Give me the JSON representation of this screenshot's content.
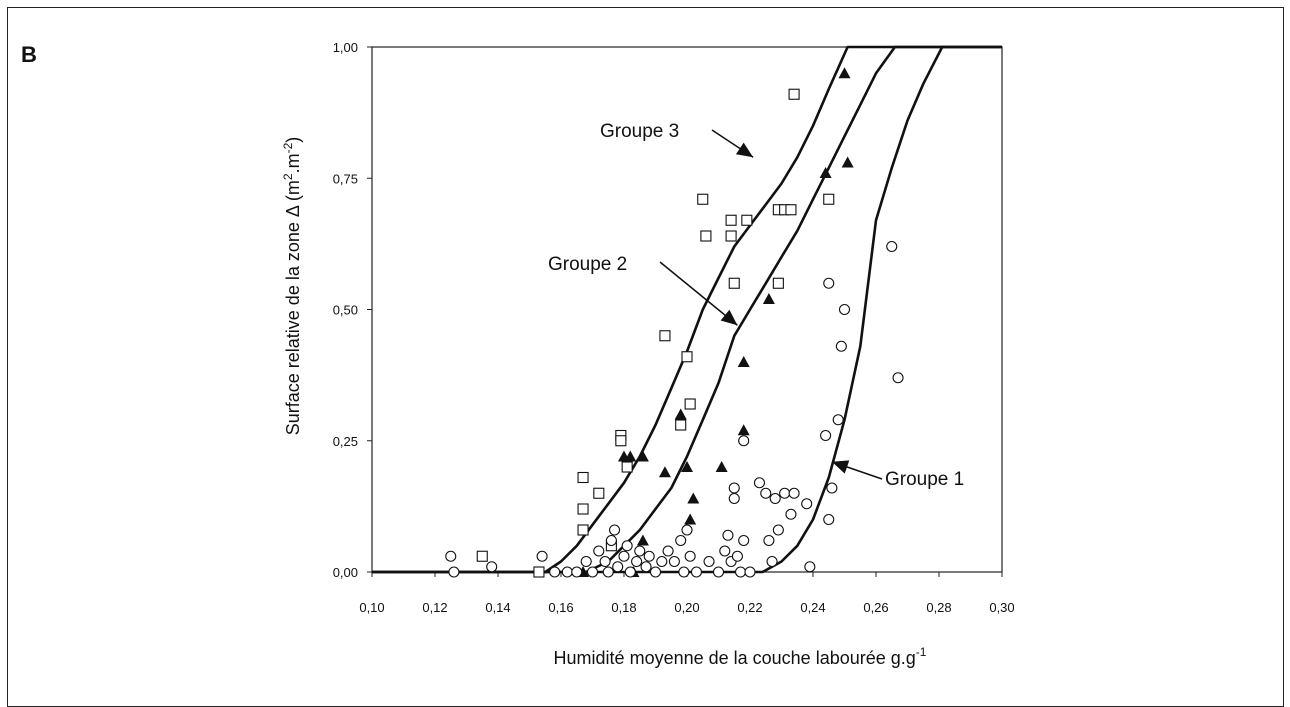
{
  "panel_label": "B",
  "colors": {
    "line": "#111111",
    "axis": "#222222"
  },
  "chart_data": {
    "type": "scatter",
    "xlabel": "Humidité moyenne de la couche labourée g.g",
    "xlabel_sup": "-1",
    "ylabel": "Surface relative de la zone Δ (m",
    "ylabel_sup1": "2",
    "ylabel_mid": ".m",
    "ylabel_sup2": "-2",
    "ylabel_end": ")",
    "xlim": [
      0.1,
      0.3
    ],
    "ylim": [
      0.0,
      1.0
    ],
    "x_ticks": [
      0.1,
      0.12,
      0.14,
      0.16,
      0.18,
      0.2,
      0.22,
      0.24,
      0.26,
      0.28,
      0.3
    ],
    "x_tick_labels": [
      "0,10",
      "0,12",
      "0,14",
      "0,16",
      "0,18",
      "0,20",
      "0,22",
      "0,24",
      "0,26",
      "0,28",
      "0,30"
    ],
    "y_ticks": [
      0.0,
      0.25,
      0.5,
      0.75,
      1.0
    ],
    "y_tick_labels": [
      "0,00",
      "0,25",
      "0,50",
      "0,75",
      "1,00"
    ],
    "grid": false,
    "curves": [
      {
        "name": "Groupe 3",
        "points": [
          [
            0.1,
            0
          ],
          [
            0.155,
            0
          ],
          [
            0.16,
            0.02
          ],
          [
            0.165,
            0.05
          ],
          [
            0.17,
            0.09
          ],
          [
            0.175,
            0.13
          ],
          [
            0.18,
            0.17
          ],
          [
            0.185,
            0.22
          ],
          [
            0.19,
            0.28
          ],
          [
            0.195,
            0.35
          ],
          [
            0.2,
            0.42
          ],
          [
            0.205,
            0.5
          ],
          [
            0.21,
            0.56
          ],
          [
            0.215,
            0.62
          ],
          [
            0.22,
            0.66
          ],
          [
            0.225,
            0.7
          ],
          [
            0.23,
            0.74
          ],
          [
            0.235,
            0.79
          ],
          [
            0.24,
            0.85
          ],
          [
            0.245,
            0.92
          ],
          [
            0.251,
            1.0
          ],
          [
            0.3,
            1.0
          ]
        ]
      },
      {
        "name": "Groupe 2",
        "points": [
          [
            0.1,
            0
          ],
          [
            0.168,
            0
          ],
          [
            0.175,
            0.02
          ],
          [
            0.18,
            0.05
          ],
          [
            0.185,
            0.08
          ],
          [
            0.19,
            0.12
          ],
          [
            0.195,
            0.16
          ],
          [
            0.2,
            0.22
          ],
          [
            0.205,
            0.29
          ],
          [
            0.21,
            0.36
          ],
          [
            0.215,
            0.45
          ],
          [
            0.22,
            0.5
          ],
          [
            0.225,
            0.55
          ],
          [
            0.23,
            0.6
          ],
          [
            0.235,
            0.65
          ],
          [
            0.24,
            0.71
          ],
          [
            0.245,
            0.77
          ],
          [
            0.25,
            0.83
          ],
          [
            0.255,
            0.89
          ],
          [
            0.26,
            0.95
          ],
          [
            0.266,
            1.0
          ],
          [
            0.3,
            1.0
          ]
        ]
      },
      {
        "name": "Groupe 1",
        "points": [
          [
            0.1,
            0
          ],
          [
            0.224,
            0
          ],
          [
            0.23,
            0.02
          ],
          [
            0.235,
            0.05
          ],
          [
            0.24,
            0.1
          ],
          [
            0.245,
            0.18
          ],
          [
            0.25,
            0.29
          ],
          [
            0.255,
            0.43
          ],
          [
            0.26,
            0.67
          ],
          [
            0.265,
            0.77
          ],
          [
            0.27,
            0.86
          ],
          [
            0.275,
            0.93
          ],
          [
            0.281,
            1.0
          ],
          [
            0.3,
            1.0
          ]
        ]
      }
    ],
    "series": [
      {
        "marker": "square",
        "points": [
          [
            0.135,
            0.03
          ],
          [
            0.153,
            0.0
          ],
          [
            0.167,
            0.18
          ],
          [
            0.167,
            0.12
          ],
          [
            0.167,
            0.08
          ],
          [
            0.172,
            0.15
          ],
          [
            0.176,
            0.05
          ],
          [
            0.179,
            0.26
          ],
          [
            0.179,
            0.25
          ],
          [
            0.181,
            0.2
          ],
          [
            0.193,
            0.45
          ],
          [
            0.198,
            0.28
          ],
          [
            0.2,
            0.41
          ],
          [
            0.201,
            0.32
          ],
          [
            0.205,
            0.71
          ],
          [
            0.206,
            0.64
          ],
          [
            0.214,
            0.67
          ],
          [
            0.214,
            0.64
          ],
          [
            0.215,
            0.55
          ],
          [
            0.219,
            0.67
          ],
          [
            0.229,
            0.69
          ],
          [
            0.231,
            0.69
          ],
          [
            0.233,
            0.69
          ],
          [
            0.234,
            0.91
          ],
          [
            0.229,
            0.55
          ],
          [
            0.245,
            0.71
          ]
        ]
      },
      {
        "marker": "triangle",
        "points": [
          [
            0.167,
            0.0
          ],
          [
            0.18,
            0.22
          ],
          [
            0.182,
            0.22
          ],
          [
            0.183,
            0.0
          ],
          [
            0.186,
            0.22
          ],
          [
            0.186,
            0.06
          ],
          [
            0.193,
            0.19
          ],
          [
            0.198,
            0.3
          ],
          [
            0.2,
            0.2
          ],
          [
            0.201,
            0.1
          ],
          [
            0.202,
            0.14
          ],
          [
            0.211,
            0.2
          ],
          [
            0.218,
            0.4
          ],
          [
            0.218,
            0.27
          ],
          [
            0.226,
            0.52
          ],
          [
            0.244,
            0.76
          ],
          [
            0.25,
            0.95
          ],
          [
            0.251,
            0.78
          ]
        ]
      },
      {
        "marker": "circle",
        "points": [
          [
            0.125,
            0.03
          ],
          [
            0.126,
            0.0
          ],
          [
            0.138,
            0.01
          ],
          [
            0.154,
            0.03
          ],
          [
            0.158,
            0.0
          ],
          [
            0.162,
            0.0
          ],
          [
            0.165,
            0.0
          ],
          [
            0.168,
            0.02
          ],
          [
            0.17,
            0.0
          ],
          [
            0.172,
            0.04
          ],
          [
            0.174,
            0.02
          ],
          [
            0.175,
            0.0
          ],
          [
            0.176,
            0.06
          ],
          [
            0.177,
            0.08
          ],
          [
            0.178,
            0.01
          ],
          [
            0.18,
            0.03
          ],
          [
            0.181,
            0.05
          ],
          [
            0.182,
            0.0
          ],
          [
            0.184,
            0.02
          ],
          [
            0.185,
            0.04
          ],
          [
            0.187,
            0.01
          ],
          [
            0.188,
            0.03
          ],
          [
            0.19,
            0.0
          ],
          [
            0.192,
            0.02
          ],
          [
            0.194,
            0.04
          ],
          [
            0.196,
            0.02
          ],
          [
            0.198,
            0.06
          ],
          [
            0.199,
            0.0
          ],
          [
            0.2,
            0.08
          ],
          [
            0.201,
            0.03
          ],
          [
            0.203,
            0.0
          ],
          [
            0.207,
            0.02
          ],
          [
            0.21,
            0.0
          ],
          [
            0.212,
            0.04
          ],
          [
            0.213,
            0.07
          ],
          [
            0.214,
            0.02
          ],
          [
            0.215,
            0.16
          ],
          [
            0.215,
            0.14
          ],
          [
            0.216,
            0.03
          ],
          [
            0.217,
            0.0
          ],
          [
            0.218,
            0.06
          ],
          [
            0.218,
            0.25
          ],
          [
            0.22,
            0.0
          ],
          [
            0.223,
            0.17
          ],
          [
            0.225,
            0.15
          ],
          [
            0.226,
            0.06
          ],
          [
            0.227,
            0.02
          ],
          [
            0.228,
            0.14
          ],
          [
            0.229,
            0.08
          ],
          [
            0.231,
            0.15
          ],
          [
            0.233,
            0.11
          ],
          [
            0.234,
            0.15
          ],
          [
            0.238,
            0.13
          ],
          [
            0.239,
            0.01
          ],
          [
            0.244,
            0.26
          ],
          [
            0.245,
            0.55
          ],
          [
            0.245,
            0.1
          ],
          [
            0.246,
            0.16
          ],
          [
            0.248,
            0.29
          ],
          [
            0.249,
            0.43
          ],
          [
            0.25,
            0.5
          ],
          [
            0.265,
            0.62
          ],
          [
            0.267,
            0.37
          ]
        ]
      }
    ],
    "annotations": [
      {
        "text": "Groupe 3",
        "target": [
          0.221,
          0.79
        ]
      },
      {
        "text": "Groupe 2",
        "target": [
          0.216,
          0.47
        ]
      },
      {
        "text": "Groupe 1",
        "target": [
          0.246,
          0.21
        ]
      }
    ]
  }
}
